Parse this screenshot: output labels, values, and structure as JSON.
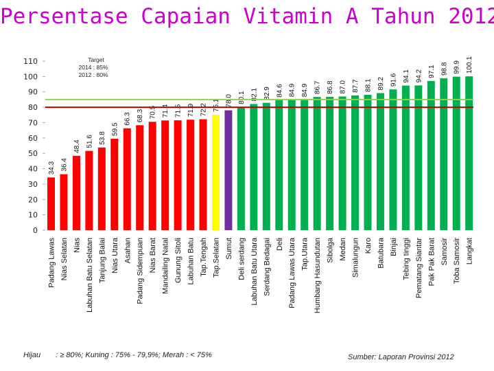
{
  "chart_data": {
    "type": "bar",
    "title": "Persentase Capaian Vitamin A Tahun 2012",
    "categories": [
      "Padang Lawas",
      "Nias Selatan",
      "Nias",
      "Labuhan Batu Selatan",
      "Tanjung Balai",
      "Nias Utara",
      "Asahan",
      "Padang Sidempuan",
      "Nias Barat",
      "Mandailing Natal",
      "Gunung Sitoli",
      "Labuhan Batu",
      "Tap.Tengah",
      "Tap.Selatan",
      "Sumut",
      "Deli serdang",
      "Labuhan Batu Utara",
      "Serdang Bedagai",
      "Deli",
      "Padang Lawas Utara",
      "Tap.Utara",
      "Humbang Hasundutan",
      "Sibolga",
      "Medan",
      "Simalungun",
      "Karo",
      "Batubara",
      "Binjai",
      "Tebing tinggi",
      "Pematang Siantar",
      "Pak Pak Barat",
      "Samosir",
      "Toba Samosir",
      "Langkat"
    ],
    "values": [
      34.3,
      36.4,
      48.4,
      51.6,
      53.8,
      59.5,
      66.3,
      68.3,
      70.5,
      71.4,
      71.5,
      71.9,
      72.2,
      75.1,
      78.0,
      80.1,
      82.1,
      82.9,
      84.6,
      84.9,
      84.9,
      86.7,
      86.8,
      87.0,
      87.7,
      88.1,
      89.2,
      91.6,
      94.1,
      94.2,
      97.1,
      98.8,
      99.9,
      100.1
    ],
    "value_labels": [
      "34.3",
      "36.4",
      "48.4",
      "51.6",
      "53.8",
      "59.5",
      "66.3",
      "68.3",
      "70.5",
      "71.4",
      "71.5",
      "71.9",
      "72.2",
      "75.1",
      "78.0",
      "80.1",
      "82.1",
      "82.9",
      "84.6",
      "84.9",
      "84.9",
      "86.7",
      "86.8",
      "87.0",
      "87.7",
      "88.1",
      "89.2",
      "91.6",
      "94.1",
      "94.2",
      "97.1",
      "98.8",
      "99.9",
      "100.1"
    ],
    "bar_colors": [
      "#ff0000",
      "#ff0000",
      "#ff0000",
      "#ff0000",
      "#ff0000",
      "#ff0000",
      "#ff0000",
      "#ff0000",
      "#ff0000",
      "#ff0000",
      "#ff0000",
      "#ff0000",
      "#ff0000",
      "#ffff00",
      "#7030a0",
      "#00b050",
      "#00b050",
      "#00b050",
      "#00b050",
      "#00b050",
      "#00b050",
      "#00b050",
      "#00b050",
      "#00b050",
      "#00b050",
      "#00b050",
      "#00b050",
      "#00b050",
      "#00b050",
      "#00b050",
      "#00b050",
      "#00b050",
      "#00b050",
      "#00b050"
    ],
    "yticks": [
      0,
      10,
      20,
      30,
      40,
      50,
      60,
      70,
      80,
      90,
      100,
      110
    ],
    "ylim": [
      0,
      110
    ],
    "xlabel": "",
    "ylabel": "",
    "target_lines": [
      {
        "label": "2014 : 85%",
        "value": 85,
        "color": "#92d050"
      },
      {
        "label": "2012 : 80%",
        "value": 80,
        "color": "#c00000"
      }
    ],
    "target_heading": "Target"
  },
  "legend_text": {
    "hijau": "Hijau",
    "rest": ": ≥ 80%; Kuning : 75% - 79,9%; Merah : < 75%"
  },
  "source_text": "Sumber: Laporan Provinsi 2012"
}
